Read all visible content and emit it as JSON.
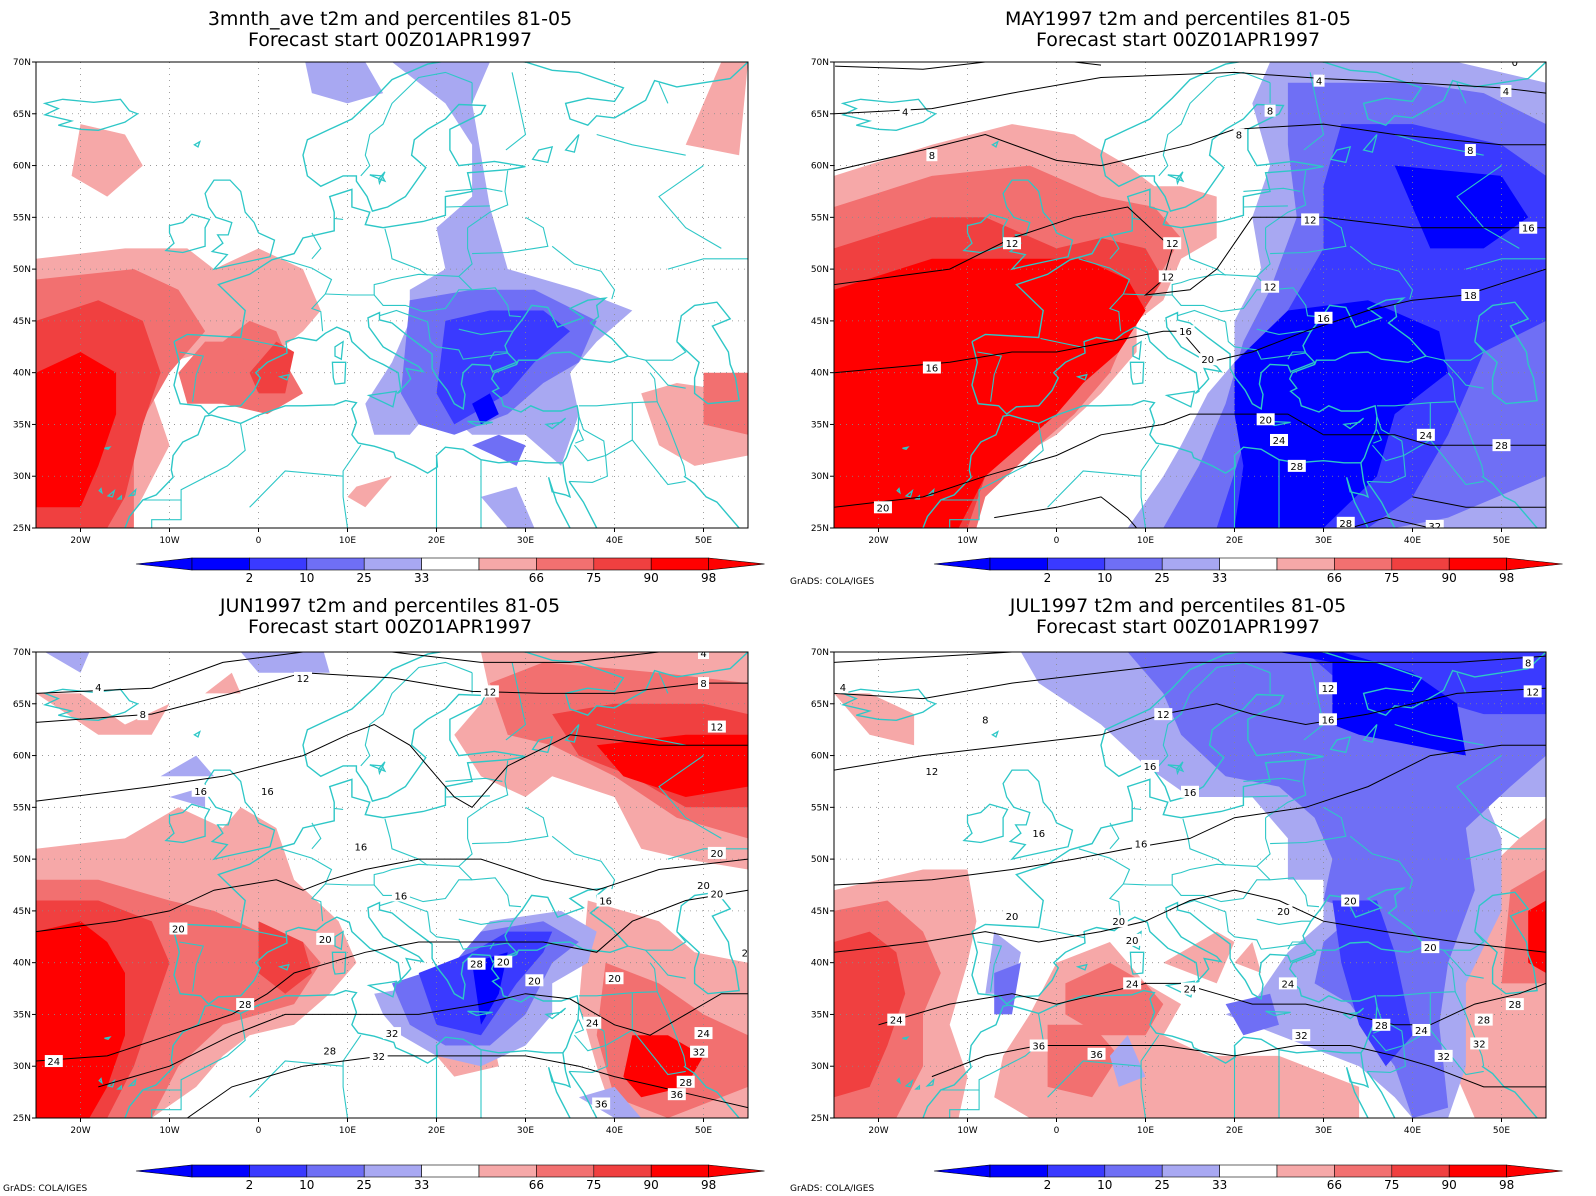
{
  "palette": {
    "p2": "#0000ff",
    "p10": "#3a3aff",
    "p25": "#6f6ff5",
    "p33": "#a8a8f2",
    "p66": "#f6a8a8",
    "p75": "#f27070",
    "p90": "#f04040",
    "p98": "#ff0000",
    "coast": "#2ec7c7",
    "contour": "#000000",
    "grid": "#8a8a8a"
  },
  "lat_ticks": [
    "70N",
    "65N",
    "60N",
    "55N",
    "50N",
    "45N",
    "40N",
    "35N",
    "30N",
    "25N"
  ],
  "lon_ticks": [
    "20W",
    "10W",
    "0",
    "10E",
    "20E",
    "30E",
    "40E",
    "50E"
  ],
  "colorbar_labels": [
    "2",
    "10",
    "25",
    "33",
    "66",
    "75",
    "90",
    "98"
  ],
  "credit": "GrADS: COLA/IGES",
  "panels": [
    {
      "id": "avg",
      "title_line1": "3mnth_ave t2m and percentiles 81-05",
      "title_line2": "Forecast start 00Z01APR1997",
      "show_credit": false,
      "contour_labels": []
    },
    {
      "id": "may",
      "title_line1": "MAY1997 t2m and percentiles 81-05",
      "title_line2": "Forecast start 00Z01APR1997",
      "show_credit": true,
      "contour_labels": [
        "0",
        "0",
        "4",
        "4",
        "4",
        "8",
        "8",
        "8",
        "8",
        "12",
        "12",
        "12",
        "12",
        "12",
        "16",
        "16",
        "16",
        "16",
        "18",
        "20",
        "20",
        "20",
        "24",
        "24",
        "28",
        "28",
        "28",
        "32"
      ]
    },
    {
      "id": "jun",
      "title_line1": "JUN1997 t2m and percentiles 81-05",
      "title_line2": "Forecast start 00Z01APR1997",
      "show_credit": true,
      "contour_labels": [
        "4",
        "4",
        "8",
        "8",
        "12",
        "12",
        "12",
        "16",
        "16",
        "16",
        "16",
        "16",
        "20",
        "20",
        "20",
        "20",
        "20",
        "20",
        "20",
        "20",
        "24",
        "24",
        "24",
        "24",
        "28",
        "28",
        "28",
        "32",
        "32",
        "32",
        "36",
        "36",
        "28"
      ]
    },
    {
      "id": "jul",
      "title_line1": "JUL1997 t2m and percentiles 81-05",
      "title_line2": "Forecast start 00Z01APR1997",
      "show_credit": true,
      "contour_labels": [
        "4",
        "8",
        "8",
        "12",
        "12",
        "12",
        "12",
        "16",
        "16",
        "16",
        "16",
        "16",
        "20",
        "20",
        "20",
        "20",
        "20",
        "20",
        "24",
        "24",
        "24",
        "24",
        "24",
        "28",
        "28",
        "28",
        "32",
        "32",
        "32",
        "36",
        "36"
      ]
    }
  ]
}
